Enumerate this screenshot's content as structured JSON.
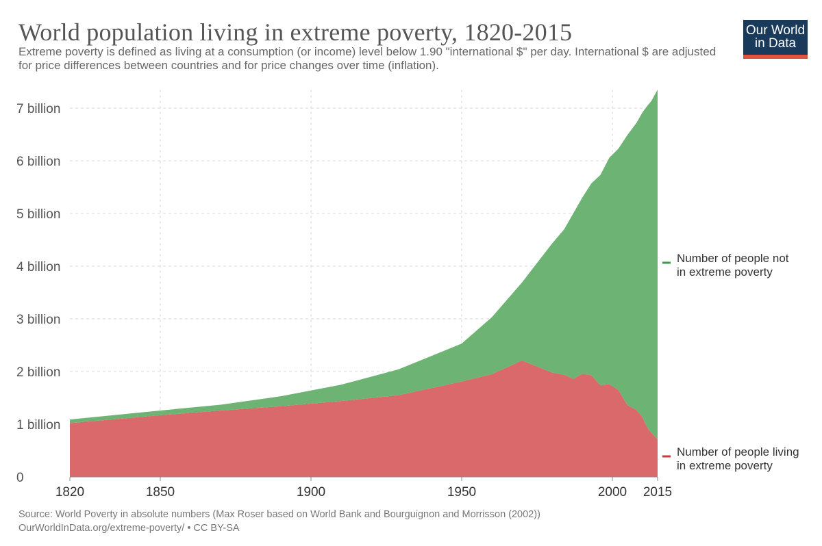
{
  "title": "World population living in extreme poverty, 1820-2015",
  "subtitle": "Extreme poverty is defined as living at a consumption (or income) level below 1.90 \"international $\" per day. International $ are adjusted for price differences between countries and for price changes over time (inflation).",
  "logo": {
    "line1": "Our World",
    "line2": "in Data"
  },
  "source_line1": "Source: World Poverty in absolute numbers (Max Roser based on World Bank and Bourguignon and Morrisson (2002))",
  "source_line2": "OurWorldInData.org/extreme-poverty/ • CC BY-SA",
  "colors": {
    "not_poverty": "#6db374",
    "poverty": "#d9696a",
    "not_poverty_marker": "#3f9a4b",
    "poverty_marker": "#c93a3a",
    "grid": "#d9d9d9",
    "axis": "#888888"
  },
  "chart_data": {
    "type": "area",
    "stacked": true,
    "x": [
      1820,
      1850,
      1870,
      1890,
      1910,
      1929,
      1950,
      1960,
      1970,
      1980,
      1984,
      1987,
      1990,
      1993,
      1996,
      1999,
      2002,
      2005,
      2008,
      2010,
      2011,
      2012,
      2013,
      2015
    ],
    "series": [
      {
        "name": "Number of people living in extreme poverty",
        "values": [
          1.02,
          1.17,
          1.26,
          1.34,
          1.44,
          1.55,
          1.81,
          1.95,
          2.21,
          1.98,
          1.94,
          1.86,
          1.96,
          1.93,
          1.74,
          1.76,
          1.65,
          1.36,
          1.27,
          1.13,
          1.0,
          0.9,
          0.84,
          0.71
        ]
      },
      {
        "name": "Number of people not in extreme poverty",
        "values": [
          0.07,
          0.09,
          0.11,
          0.19,
          0.31,
          0.49,
          0.72,
          1.08,
          1.48,
          2.45,
          2.76,
          3.14,
          3.34,
          3.64,
          3.99,
          4.3,
          4.58,
          5.13,
          5.45,
          5.79,
          6.0,
          6.17,
          6.3,
          6.64
        ]
      }
    ],
    "xticks": [
      1820,
      1850,
      1900,
      1950,
      2000,
      2015
    ],
    "yticks": [
      {
        "value": 0,
        "label": "0"
      },
      {
        "value": 1,
        "label": "1 billion"
      },
      {
        "value": 2,
        "label": "2 billion"
      },
      {
        "value": 3,
        "label": "3 billion"
      },
      {
        "value": 4,
        "label": "4 billion"
      },
      {
        "value": 5,
        "label": "5 billion"
      },
      {
        "value": 6,
        "label": "6 billion"
      },
      {
        "value": 7,
        "label": "7 billion"
      }
    ],
    "xlim": [
      1820,
      2015
    ],
    "ylim": [
      0,
      7.35
    ],
    "grid": true,
    "legend_placement": "right",
    "legend": {
      "not_poverty": [
        "Number of people not",
        "in extreme poverty"
      ],
      "poverty": [
        "Number of people living",
        "in extreme poverty"
      ]
    }
  }
}
